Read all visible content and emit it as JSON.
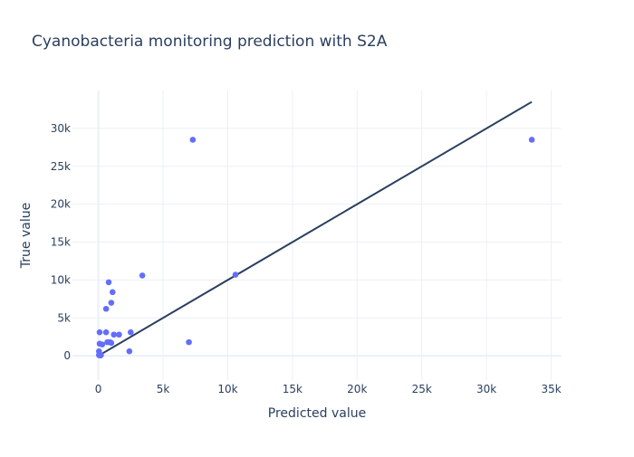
{
  "chart_data": {
    "type": "scatter",
    "title": "Cyanobacteria monitoring prediction with S2A",
    "xlabel": "Predicted value",
    "ylabel": "True value",
    "xlim": [
      -2000,
      35800
    ],
    "ylim": [
      -3200,
      35000
    ],
    "x_ticks": [
      0,
      5000,
      10000,
      15000,
      20000,
      25000,
      30000,
      35000
    ],
    "x_tick_labels": [
      "0",
      "5k",
      "10k",
      "15k",
      "20k",
      "25k",
      "30k",
      "35k"
    ],
    "y_ticks": [
      0,
      5000,
      10000,
      15000,
      20000,
      25000,
      30000
    ],
    "y_tick_labels": [
      "0",
      "5k",
      "10k",
      "15k",
      "20k",
      "25k",
      "30k"
    ],
    "grid": true,
    "legend": "none",
    "colors": {
      "points": "#636efa",
      "line": "#2a3f5f"
    },
    "points": [
      {
        "x": 7300,
        "y": 28500
      },
      {
        "x": 33500,
        "y": 28500
      },
      {
        "x": 10600,
        "y": 10700
      },
      {
        "x": 3400,
        "y": 10600
      },
      {
        "x": 800,
        "y": 9700
      },
      {
        "x": 1100,
        "y": 8400
      },
      {
        "x": 1000,
        "y": 7000
      },
      {
        "x": 600,
        "y": 6200
      },
      {
        "x": 100,
        "y": 3100
      },
      {
        "x": 600,
        "y": 3100
      },
      {
        "x": 2500,
        "y": 3100
      },
      {
        "x": 1200,
        "y": 2800
      },
      {
        "x": 1600,
        "y": 2800
      },
      {
        "x": 700,
        "y": 1800
      },
      {
        "x": 900,
        "y": 1800
      },
      {
        "x": 1000,
        "y": 1700
      },
      {
        "x": 7000,
        "y": 1800
      },
      {
        "x": 100,
        "y": 1600
      },
      {
        "x": 300,
        "y": 1500
      },
      {
        "x": 2400,
        "y": 600
      },
      {
        "x": 50,
        "y": 600
      },
      {
        "x": 50,
        "y": 100
      },
      {
        "x": 150,
        "y": 50
      },
      {
        "x": 200,
        "y": 100
      }
    ],
    "reference_line": {
      "x": [
        0,
        33500
      ],
      "y": [
        0,
        33500
      ]
    }
  }
}
